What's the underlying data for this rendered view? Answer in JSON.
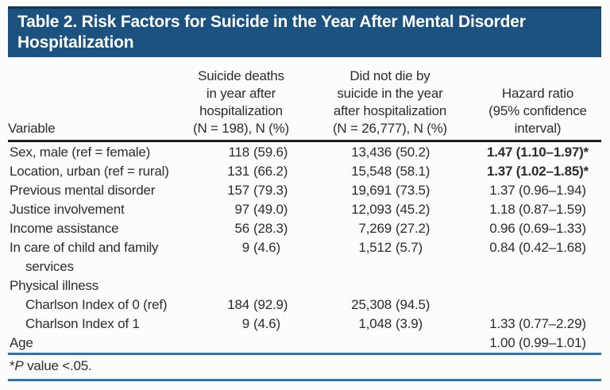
{
  "title": "Table 2. Risk Factors for Suicide in the Year After Mental Disorder Hospitalization",
  "columns": {
    "variable": "Variable",
    "deaths_lines": [
      "Suicide deaths",
      "in year after",
      "hospitalization",
      "(N = 198), N (%)"
    ],
    "no_deaths_lines": [
      "Did not die by",
      "suicide in the year",
      "after hospitalization",
      "(N = 26,777), N (%)"
    ],
    "hazard_lines": [
      "Hazard ratio",
      "(95% confidence",
      "interval)"
    ]
  },
  "rows": [
    {
      "label": "Sex, male (ref = female)",
      "count1": "118",
      "pct1": "(59.6)",
      "count2": "13,436",
      "pct2": "(50.2)",
      "hr": "1.47 (1.10–1.97)*",
      "significant": true
    },
    {
      "label": "Location, urban (ref = rural)",
      "count1": "131",
      "pct1": "(66.2)",
      "count2": "15,548",
      "pct2": "(58.1)",
      "hr": "1.37 (1.02–1.85)*",
      "significant": true
    },
    {
      "label": "Previous mental disorder",
      "count1": "157",
      "pct1": "(79.3)",
      "count2": "19,691",
      "pct2": "(73.5)",
      "hr": "1.37 (0.96–1.94)",
      "significant": false
    },
    {
      "label": "Justice involvement",
      "count1": "97",
      "pct1": "(49.0)",
      "count2": "12,093",
      "pct2": "(45.2)",
      "hr": "1.18 (0.87–1.59)",
      "significant": false
    },
    {
      "label": "Income assistance",
      "count1": "56",
      "pct1": "(28.3)",
      "count2": "7,269",
      "pct2": "(27.2)",
      "hr": "0.96 (0.69–1.33)",
      "significant": false
    },
    {
      "label": "In care of child and family services",
      "count1": "9",
      "pct1": "(4.6)",
      "count2": "1,512",
      "pct2": "(5.7)",
      "hr": "0.84 (0.42–1.68)",
      "significant": false
    },
    {
      "label": "Physical illness",
      "count1": "",
      "pct1": "",
      "count2": "",
      "pct2": "",
      "hr": "",
      "significant": false
    },
    {
      "label": "Charlson Index of 0 (ref)",
      "count1": "184",
      "pct1": "(92.9)",
      "count2": "25,308",
      "pct2": "(94.5)",
      "hr": "",
      "significant": false
    },
    {
      "label": "Charlson Index of 1",
      "count1": "9",
      "pct1": "(4.6)",
      "count2": "1,048",
      "pct2": "(3.9)",
      "hr": "1.33 (0.77–2.29)",
      "significant": false
    },
    {
      "label": "Age",
      "count1": "",
      "pct1": "",
      "count2": "",
      "pct2": "",
      "hr": "1.00 (0.99–1.01)",
      "significant": false
    }
  ],
  "footnote": {
    "star": "*",
    "italic": "P",
    "rest": " value <.05."
  },
  "colors": {
    "band_blue": "#1b5280",
    "band_top_border": "#14344c",
    "header_rule": "#1e1e1e",
    "blue_rule": "#2e74b5",
    "text": "#2d2c2b",
    "title_text": "#ffffff",
    "background": "#fcfdfa"
  }
}
